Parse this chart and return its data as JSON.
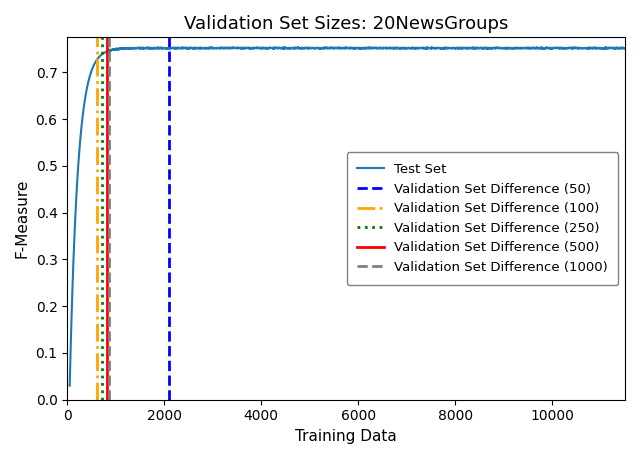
{
  "title": "Validation Set Sizes: 20NewsGroups",
  "xlabel": "Training Data",
  "ylabel": "F-Measure",
  "ylim": [
    0.0,
    0.775
  ],
  "xlim": [
    0,
    11500
  ],
  "test_set_color": "#1f77b4",
  "curve_x_start": 50,
  "curve_plateau": 0.752,
  "curve_k": 0.006,
  "vlines": [
    {
      "x": 2100,
      "color": "blue",
      "linestyle": "--",
      "linewidth": 2.0,
      "label": "Validation Set Difference (50)"
    },
    {
      "x": 620,
      "color": "orange",
      "linestyle": "-.",
      "linewidth": 2.0,
      "label": "Validation Set Difference (100)"
    },
    {
      "x": 720,
      "color": "green",
      "linestyle": ":",
      "linewidth": 2.0,
      "label": "Validation Set Difference (250)"
    },
    {
      "x": 820,
      "color": "red",
      "linestyle": "-",
      "linewidth": 2.0,
      "label": "Validation Set Difference (500)"
    },
    {
      "x": 870,
      "color": "gray",
      "linestyle": "--",
      "linewidth": 2.0,
      "label": "Validation Set Difference (1000)"
    }
  ],
  "title_fontsize": 13,
  "label_fontsize": 11,
  "tick_fontsize": 10,
  "legend_fontsize": 9.5,
  "legend_loc": "center right",
  "xticks": [
    0,
    2000,
    4000,
    6000,
    8000,
    10000
  ],
  "yticks": [
    0.0,
    0.1,
    0.2,
    0.3,
    0.4,
    0.5,
    0.6,
    0.7
  ]
}
